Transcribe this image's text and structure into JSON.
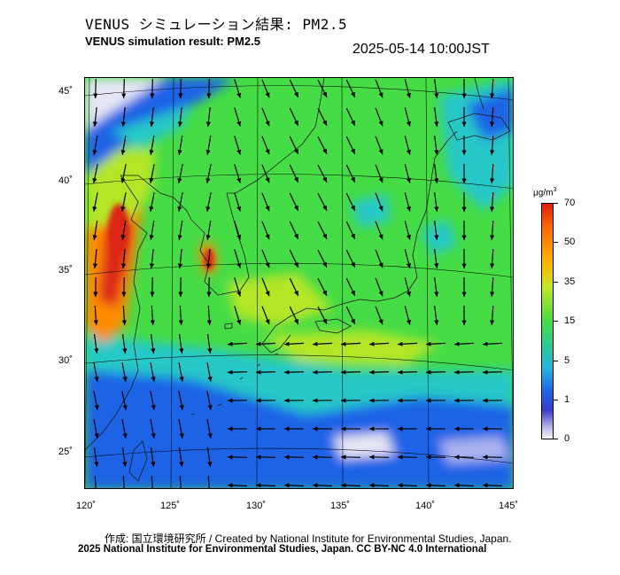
{
  "header": {
    "title_jp": "VENUS シミュレーション結果: PM2.5",
    "title_en": "VENUS simulation result: PM2.5",
    "timestamp": "2025-05-14 10:00JST"
  },
  "map": {
    "lon_range": [
      120,
      145
    ],
    "lat_range": [
      23,
      46
    ],
    "x_ticks": [
      "120˚",
      "125˚",
      "130˚",
      "135˚",
      "140˚",
      "145˚"
    ],
    "y_ticks": [
      "45˚",
      "40˚",
      "35˚",
      "30˚",
      "25˚"
    ],
    "field": "PM2.5 concentration with wind vectors",
    "colors": {
      "very_low": "#e6e6f5",
      "low": "#1e64e6",
      "mid": "#28c8c8",
      "moderate": "#46dc46",
      "high": "#b4e628",
      "very_high": "#ff8c00",
      "extreme": "#dc2814"
    }
  },
  "colorbar": {
    "unit": "μg/m",
    "unit_sup": "3",
    "ticks": [
      "70",
      "50",
      "35",
      "15",
      "5",
      "1",
      "0"
    ]
  },
  "footer": {
    "credit_line": "作成: 国立環境研究所 / Created by National Institute for Environmental Studies, Japan.",
    "license_line": "2025 National Institute for Environmental Studies, Japan. CC BY-NC 4.0 International"
  }
}
